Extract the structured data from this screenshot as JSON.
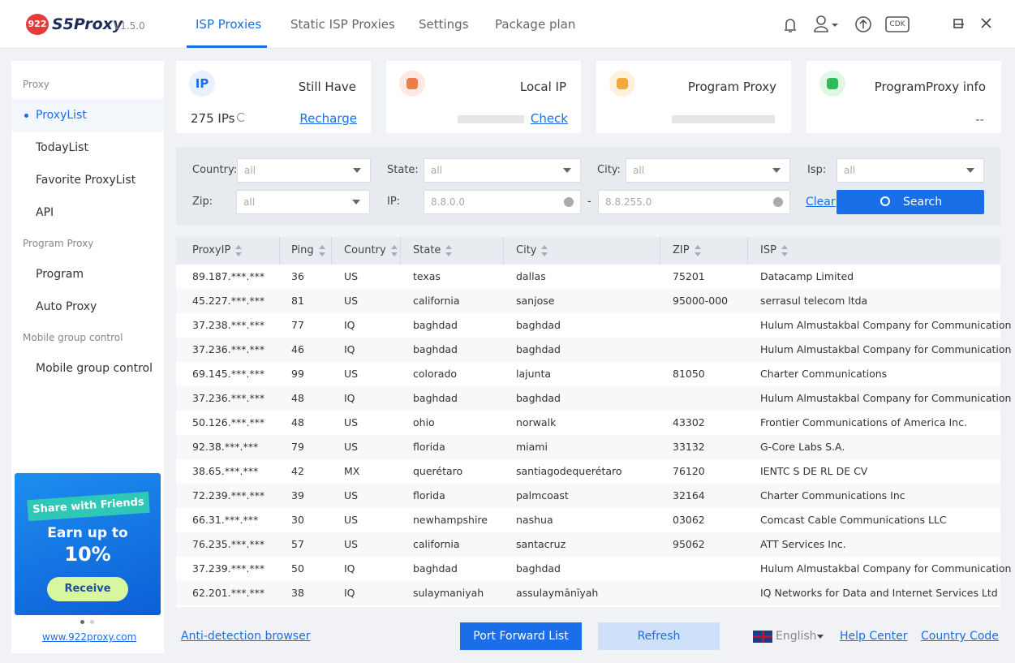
{
  "header": {
    "logo_badge": "922",
    "logo_text": "S5Proxy",
    "version": "V1.5.0",
    "tabs": [
      "ISP Proxies",
      "Static ISP Proxies",
      "Settings",
      "Package plan"
    ],
    "active_tab": 0,
    "cdk": "CDK"
  },
  "sidebar": {
    "sections": [
      {
        "title": "Proxy",
        "items": [
          "ProxyList",
          "TodayList",
          "Favorite ProxyList",
          "API"
        ]
      },
      {
        "title": "Program Proxy",
        "items": [
          "Program",
          "Auto Proxy"
        ]
      },
      {
        "title": "Mobile group control",
        "items": [
          "Mobile group control"
        ]
      }
    ],
    "banner": {
      "title": "Share with Friends",
      "line1": "Earn up to",
      "line2": "10%",
      "button": "Receive"
    },
    "link": "www.922proxy.com"
  },
  "cards": [
    {
      "icon": "IP",
      "title": "Still Have",
      "value": "275 IPs",
      "link": "Recharge"
    },
    {
      "title": "Local IP",
      "link": "Check"
    },
    {
      "title": "Program Proxy"
    },
    {
      "title": "ProgramProxy info",
      "value": "--"
    }
  ],
  "filters": {
    "country_label": "Country:",
    "country": "all",
    "state_label": "State:",
    "state": "all",
    "city_label": "City:",
    "city": "all",
    "isp_label": "Isp:",
    "isp": "all",
    "zip_label": "Zip:",
    "zip": "all",
    "ip_label": "IP:",
    "ip_from": "8.8.0.0",
    "separator": "-",
    "ip_to": "8.8.255.0",
    "clear": "Clear",
    "search": "Search"
  },
  "table": {
    "columns": [
      "ProxyIP",
      "Ping",
      "Country",
      "State",
      "City",
      "ZIP",
      "ISP"
    ],
    "rows": [
      [
        "89.187.***.***",
        "36",
        "US",
        "texas",
        "dallas",
        "75201",
        "Datacamp Limited"
      ],
      [
        "45.227.***.***",
        "81",
        "US",
        "california",
        "sanjose",
        "95000-000",
        "serrasul telecom ltda"
      ],
      [
        "37.238.***.***",
        "77",
        "IQ",
        "baghdad",
        "baghdad",
        null,
        "Hulum Almustakbal Company for Communication ..."
      ],
      [
        "37.236.***.***",
        "46",
        "IQ",
        "baghdad",
        "baghdad",
        null,
        "Hulum Almustakbal Company for Communication ..."
      ],
      [
        "69.145.***.***",
        "99",
        "US",
        "colorado",
        "lajunta",
        "81050",
        "Charter Communications"
      ],
      [
        "37.236.***.***",
        "48",
        "IQ",
        "baghdad",
        "baghdad",
        null,
        "Hulum Almustakbal Company for Communication ..."
      ],
      [
        "50.126.***.***",
        "48",
        "US",
        "ohio",
        "norwalk",
        "43302",
        "Frontier Communications of America Inc."
      ],
      [
        "92.38.***.***",
        "79",
        "US",
        "florida",
        "miami",
        "33132",
        "G-Core Labs S.A."
      ],
      [
        "38.65.***.***",
        "42",
        "MX",
        "querétaro",
        "santiagodequerétaro",
        "76120",
        "IENTC S DE RL DE CV"
      ],
      [
        "72.239.***.***",
        "39",
        "US",
        "florida",
        "palmcoast",
        "32164",
        "Charter Communications Inc"
      ],
      [
        "66.31.***.***",
        "30",
        "US",
        "newhampshire",
        "nashua",
        "03062",
        "Comcast Cable Communications LLC"
      ],
      [
        "76.235.***.***",
        "57",
        "US",
        "california",
        "santacruz",
        "95062",
        "ATT Services Inc."
      ],
      [
        "37.239.***.***",
        "50",
        "IQ",
        "baghdad",
        "baghdad",
        null,
        "Hulum Almustakbal Company for Communication ..."
      ],
      [
        "62.201.***.***",
        "38",
        "IQ",
        "sulaymaniyah",
        "assulaymānīyah",
        null,
        "IQ Networks for Data and Internet Services Ltd"
      ]
    ]
  },
  "footer": {
    "anti_detection": "Anti-detection browser",
    "port_forward": "Port Forward List",
    "refresh": "Refresh",
    "language": "English",
    "help": "Help Center",
    "country_code": "Country Code"
  }
}
